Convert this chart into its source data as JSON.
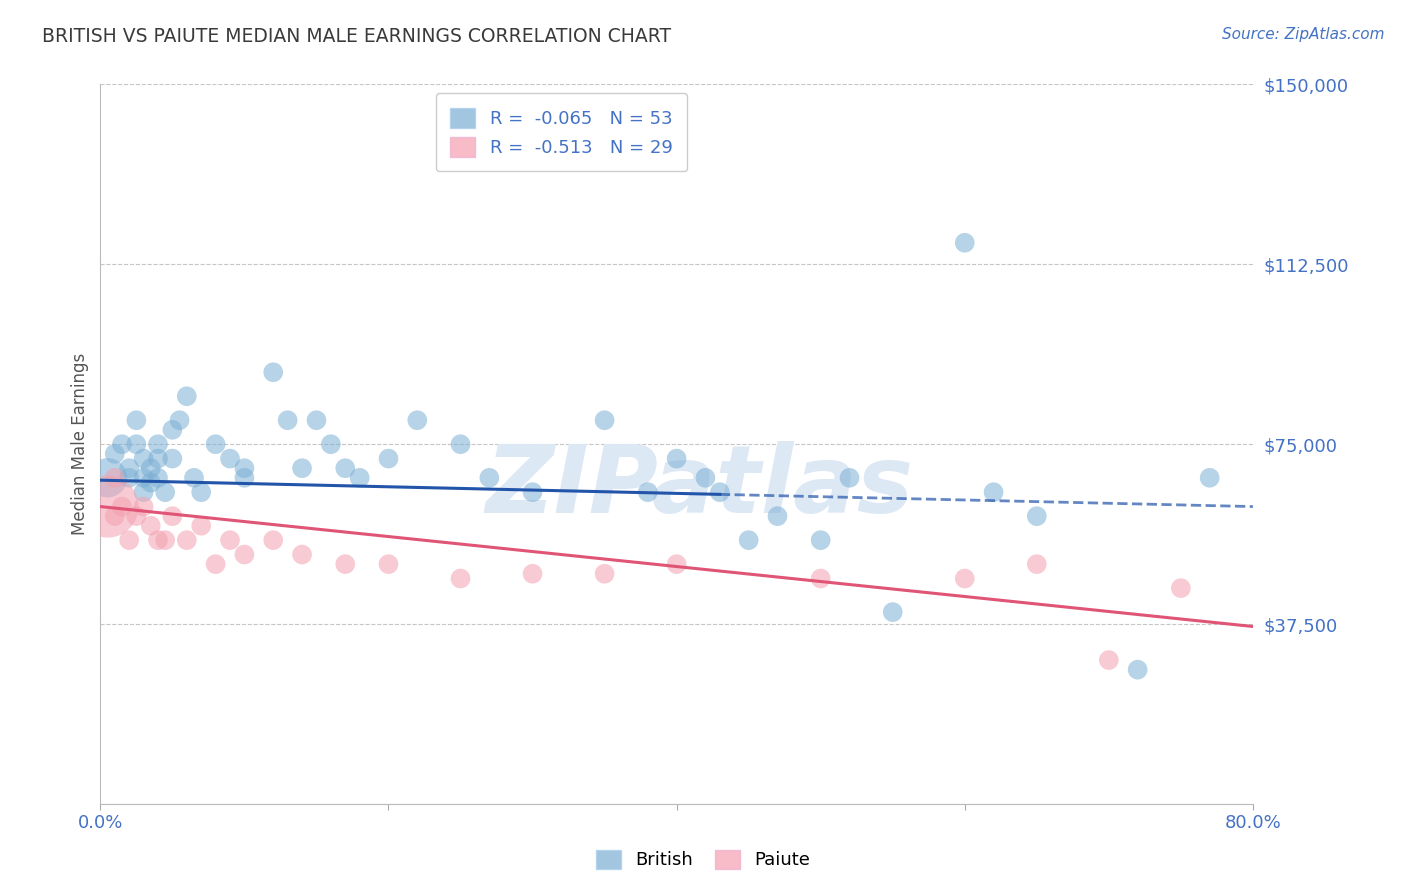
{
  "title": "BRITISH VS PAIUTE MEDIAN MALE EARNINGS CORRELATION CHART",
  "source_text": "Source: ZipAtlas.com",
  "ylabel": "Median Male Earnings",
  "xlim": [
    0.0,
    0.8
  ],
  "ylim": [
    0,
    150000
  ],
  "yticks": [
    0,
    37500,
    75000,
    112500,
    150000
  ],
  "ytick_labels": [
    "",
    "$37,500",
    "$75,000",
    "$112,500",
    "$150,000"
  ],
  "xticks": [
    0.0,
    0.2,
    0.4,
    0.6,
    0.8
  ],
  "xtick_labels": [
    "0.0%",
    "",
    "",
    "",
    "80.0%"
  ],
  "title_color": "#3a3a3a",
  "ytick_color": "#4472c4",
  "xtick_color": "#4472c4",
  "british_color": "#7bafd4",
  "paiute_color": "#f4a0b0",
  "british_line_color": "#2255aa",
  "paiute_line_color": "#e05575",
  "grid_color": "#c0c0c0",
  "watermark_color": "#dde8f5",
  "background_color": "#ffffff",
  "british_R": -0.065,
  "british_N": 53,
  "paiute_R": -0.513,
  "paiute_N": 29,
  "british_x": [
    0.005,
    0.01,
    0.015,
    0.02,
    0.02,
    0.025,
    0.025,
    0.03,
    0.03,
    0.03,
    0.035,
    0.035,
    0.04,
    0.04,
    0.04,
    0.045,
    0.05,
    0.05,
    0.055,
    0.06,
    0.065,
    0.07,
    0.08,
    0.09,
    0.1,
    0.1,
    0.12,
    0.13,
    0.14,
    0.15,
    0.16,
    0.17,
    0.18,
    0.2,
    0.22,
    0.25,
    0.27,
    0.3,
    0.35,
    0.38,
    0.4,
    0.42,
    0.43,
    0.45,
    0.47,
    0.5,
    0.52,
    0.55,
    0.6,
    0.62,
    0.65,
    0.72,
    0.77
  ],
  "british_y": [
    68000,
    73000,
    75000,
    70000,
    68000,
    80000,
    75000,
    72000,
    68000,
    65000,
    70000,
    67000,
    75000,
    72000,
    68000,
    65000,
    78000,
    72000,
    80000,
    85000,
    68000,
    65000,
    75000,
    72000,
    70000,
    68000,
    90000,
    80000,
    70000,
    80000,
    75000,
    70000,
    68000,
    72000,
    80000,
    75000,
    68000,
    65000,
    80000,
    65000,
    72000,
    68000,
    65000,
    55000,
    60000,
    55000,
    68000,
    40000,
    117000,
    65000,
    60000,
    28000,
    68000
  ],
  "british_size": [
    800,
    200,
    200,
    200,
    200,
    200,
    200,
    200,
    200,
    200,
    200,
    200,
    200,
    200,
    200,
    200,
    200,
    200,
    200,
    200,
    200,
    200,
    200,
    200,
    200,
    200,
    200,
    200,
    200,
    200,
    200,
    200,
    200,
    200,
    200,
    200,
    200,
    200,
    200,
    200,
    200,
    200,
    200,
    200,
    200,
    200,
    200,
    200,
    200,
    200,
    200,
    200,
    200
  ],
  "paiute_x": [
    0.005,
    0.01,
    0.01,
    0.015,
    0.02,
    0.025,
    0.03,
    0.035,
    0.04,
    0.045,
    0.05,
    0.06,
    0.07,
    0.08,
    0.09,
    0.1,
    0.12,
    0.14,
    0.17,
    0.2,
    0.25,
    0.3,
    0.35,
    0.4,
    0.5,
    0.6,
    0.65,
    0.7,
    0.75
  ],
  "paiute_y": [
    62000,
    68000,
    60000,
    62000,
    55000,
    60000,
    62000,
    58000,
    55000,
    55000,
    60000,
    55000,
    58000,
    50000,
    55000,
    52000,
    55000,
    52000,
    50000,
    50000,
    47000,
    48000,
    48000,
    50000,
    47000,
    47000,
    50000,
    30000,
    45000
  ],
  "paiute_size": [
    2000,
    200,
    200,
    200,
    200,
    200,
    200,
    200,
    200,
    200,
    200,
    200,
    200,
    200,
    200,
    200,
    200,
    200,
    200,
    200,
    200,
    200,
    200,
    200,
    200,
    200,
    200,
    200,
    200
  ]
}
